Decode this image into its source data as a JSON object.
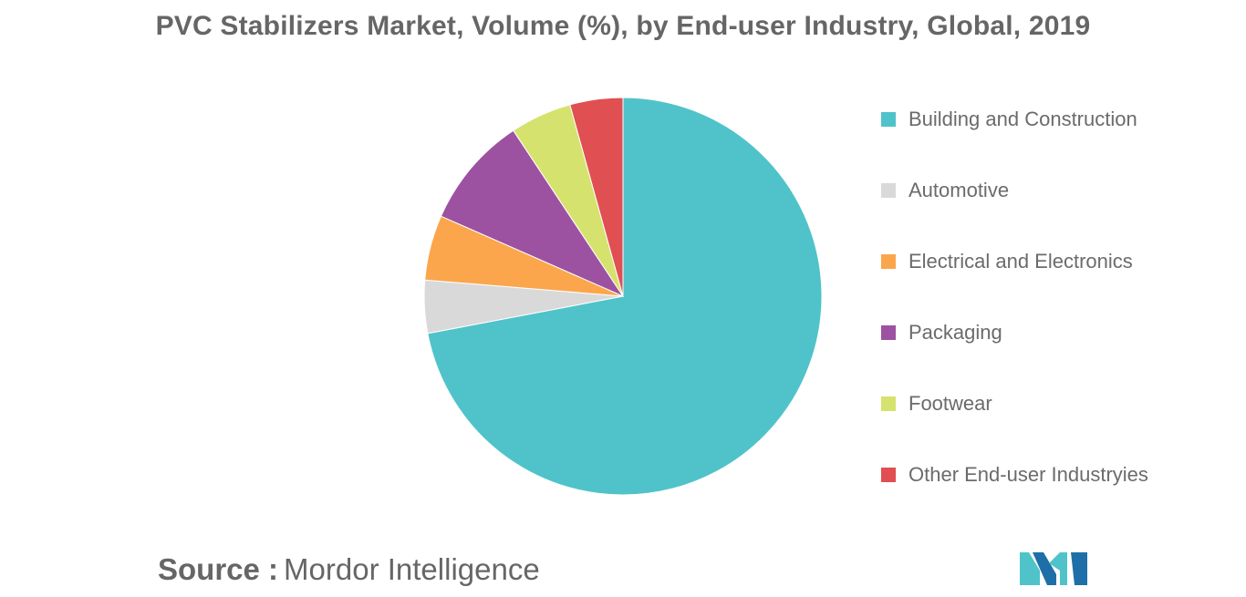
{
  "title": "PVC Stabilizers Market, Volume (%), by End-user Industry, Global, 2019",
  "source": {
    "label": "Source :",
    "value": "Mordor Intelligence"
  },
  "chart_data": {
    "type": "pie",
    "title": "PVC Stabilizers Market, Volume (%), by End-user Industry, Global, 2019",
    "start": "top (12 o'clock), clockwise",
    "legend_position": "right",
    "slices": [
      {
        "label": "Building and Construction",
        "value": 72.0,
        "color": "#4fc3c9"
      },
      {
        "label": "Automotive",
        "value": 4.3,
        "color": "#d9d9d9"
      },
      {
        "label": "Electrical and Electronics",
        "value": 5.3,
        "color": "#fba64c"
      },
      {
        "label": "Packaging",
        "value": 9.1,
        "color": "#9c52a0"
      },
      {
        "label": "Footwear",
        "value": 5.0,
        "color": "#d6e26e"
      },
      {
        "label": "Other End-user Industryies",
        "value": 4.3,
        "color": "#e04f52"
      }
    ]
  },
  "logo": {
    "name": "Mordor Intelligence logo",
    "colors": [
      "#1e6fa8",
      "#4fc3c9"
    ]
  }
}
